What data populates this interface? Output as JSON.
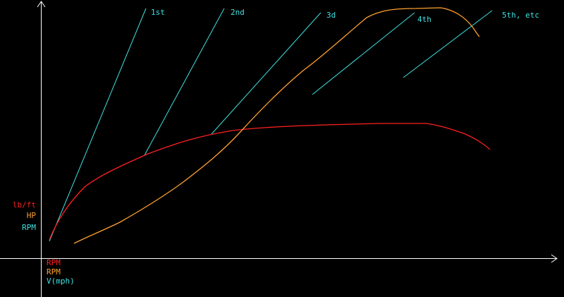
{
  "gear_labels": [
    "1st",
    "2nd",
    "3d",
    "4th",
    "5th, etc"
  ],
  "y_axis_labels": [
    "lb/ft",
    "HP",
    "RPM"
  ],
  "x_axis_labels": [
    "RPM",
    "RPM",
    "V(mph)"
  ]
}
